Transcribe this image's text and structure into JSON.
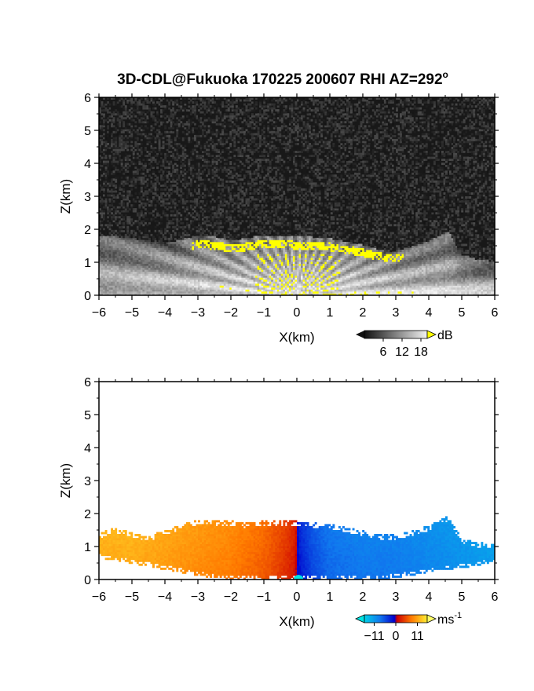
{
  "chart_data": [
    {
      "type": "heatmap",
      "title": "3D-CDL@Fukuoka 170225 200607 RHI AZ=292",
      "title_superscript": "o",
      "xlabel": "X(km)",
      "ylabel": "Z(km)",
      "xlim": [
        -6,
        6
      ],
      "ylim": [
        0,
        6
      ],
      "x_ticks": [
        "-6",
        "-5",
        "-4",
        "-3",
        "-2",
        "-1",
        "0",
        "1",
        "2",
        "3",
        "4",
        "5",
        "6"
      ],
      "y_ticks": [
        "0",
        "1",
        "2",
        "3",
        "4",
        "5",
        "6"
      ],
      "colorbar": {
        "unit": "dB",
        "ticks": [
          "6",
          "12",
          "18"
        ],
        "tick_values": [
          6,
          12,
          18
        ],
        "range": [
          0,
          20
        ],
        "scheme": "grayscale",
        "over_color": "#ffff00"
      },
      "echo_top": {
        "x": [
          -6,
          -5,
          -4,
          -3.3,
          -3,
          -2.5,
          -2,
          -1.5,
          -1,
          -0.5,
          0,
          0.5,
          1,
          1.5,
          2,
          2.5,
          3,
          3.5,
          4,
          4.5,
          4.6,
          5,
          5.5,
          6
        ],
        "z": [
          1.8,
          1.7,
          1.55,
          1.7,
          1.8,
          1.75,
          1.65,
          1.7,
          1.8,
          1.78,
          1.76,
          1.74,
          1.7,
          1.6,
          1.5,
          1.35,
          1.3,
          1.45,
          1.6,
          1.85,
          1.9,
          1.2,
          1.05,
          1.0
        ]
      },
      "strong_echo_threshold_db": 18
    },
    {
      "type": "heatmap",
      "xlabel": "X(km)",
      "ylabel": "Z(km)",
      "xlim": [
        -6,
        6
      ],
      "ylim": [
        0,
        6
      ],
      "x_ticks": [
        "-6",
        "-5",
        "-4",
        "-3",
        "-2",
        "-1",
        "0",
        "1",
        "2",
        "3",
        "4",
        "5",
        "6"
      ],
      "y_ticks": [
        "0",
        "1",
        "2",
        "3",
        "4",
        "5",
        "6"
      ],
      "colorbar": {
        "unit": "ms",
        "unit_superscript": "-1",
        "ticks": [
          "-11",
          "0",
          "11"
        ],
        "tick_values": [
          -11,
          0,
          11
        ],
        "range": [
          -16,
          16
        ],
        "scheme": "blue-red-yellow",
        "under_color": "#00e5e5",
        "over_color": "#ffff66"
      },
      "echo_top": {
        "x": [
          -6,
          -5.6,
          -5.2,
          -4.5,
          -3.3,
          -3,
          -2.5,
          -2,
          -1.5,
          -1,
          -0.5,
          0,
          0.5,
          1,
          1.5,
          2,
          2.5,
          3,
          3.5,
          4,
          4.5,
          4.6,
          5,
          5.5,
          6
        ],
        "z": [
          1.35,
          1.55,
          1.45,
          1.3,
          1.7,
          1.8,
          1.75,
          1.75,
          1.7,
          1.75,
          1.75,
          1.74,
          1.7,
          1.65,
          1.55,
          1.45,
          1.35,
          1.35,
          1.45,
          1.6,
          1.85,
          1.9,
          1.25,
          1.1,
          1.05
        ]
      },
      "radial_velocity_ms": {
        "x": [
          -6,
          -5,
          -4,
          -3,
          -2,
          -1,
          -0.5,
          -0.1,
          0.1,
          0.5,
          1,
          2,
          3,
          4,
          5,
          6
        ],
        "velocity": [
          11,
          11,
          10,
          9,
          8,
          6,
          4,
          2,
          -2,
          -5,
          -7,
          -8,
          -8,
          -9,
          -10,
          -11
        ]
      }
    }
  ]
}
